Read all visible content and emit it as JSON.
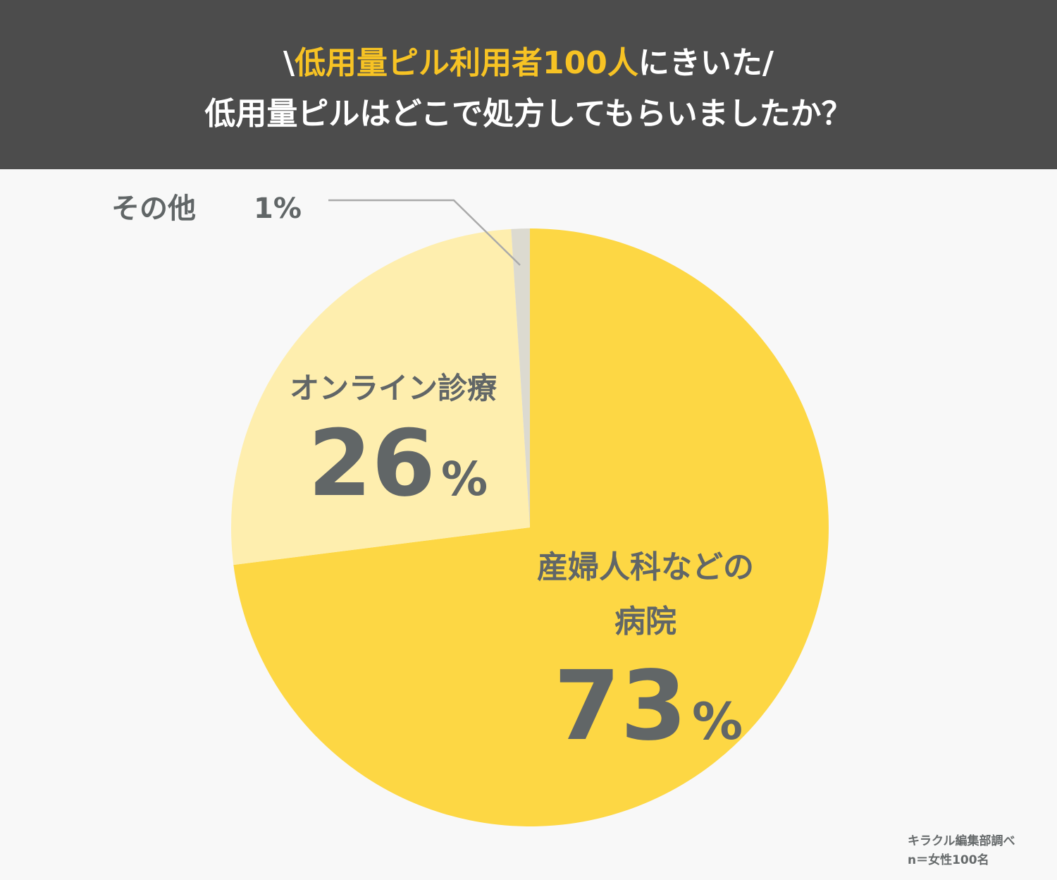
{
  "header": {
    "title_prefix": "\\",
    "title_highlight": "低用量ピル利用者100人",
    "title_suffix": "にきいた/",
    "subtitle": "低用量ピルはどこで処方してもらいましたか？"
  },
  "colors": {
    "header_bg": "#4c4c4c",
    "highlight": "#f7c324",
    "slice_hospital": "#fdd744",
    "slice_online": "#feeeae",
    "slice_other": "#dcdad0",
    "label_text": "#616667",
    "background": "#f8f8f8"
  },
  "chart_data": {
    "type": "pie",
    "start": "12 o'clock, clockwise",
    "slices": [
      {
        "label_lines": [
          "産婦人科などの",
          "病院"
        ],
        "value": 73,
        "value_text": "73",
        "unit": "%",
        "color": "#fdd744"
      },
      {
        "label_lines": [
          "オンライン診療"
        ],
        "value": 26,
        "value_text": "26",
        "unit": "%",
        "color": "#feeeae"
      },
      {
        "label_lines": [
          "その他"
        ],
        "value": 1,
        "value_text": "1%",
        "unit": "",
        "color": "#dcdad0"
      }
    ]
  },
  "credit": {
    "line1": "キラクル編集部調べ",
    "line2": "n＝女性100名"
  }
}
